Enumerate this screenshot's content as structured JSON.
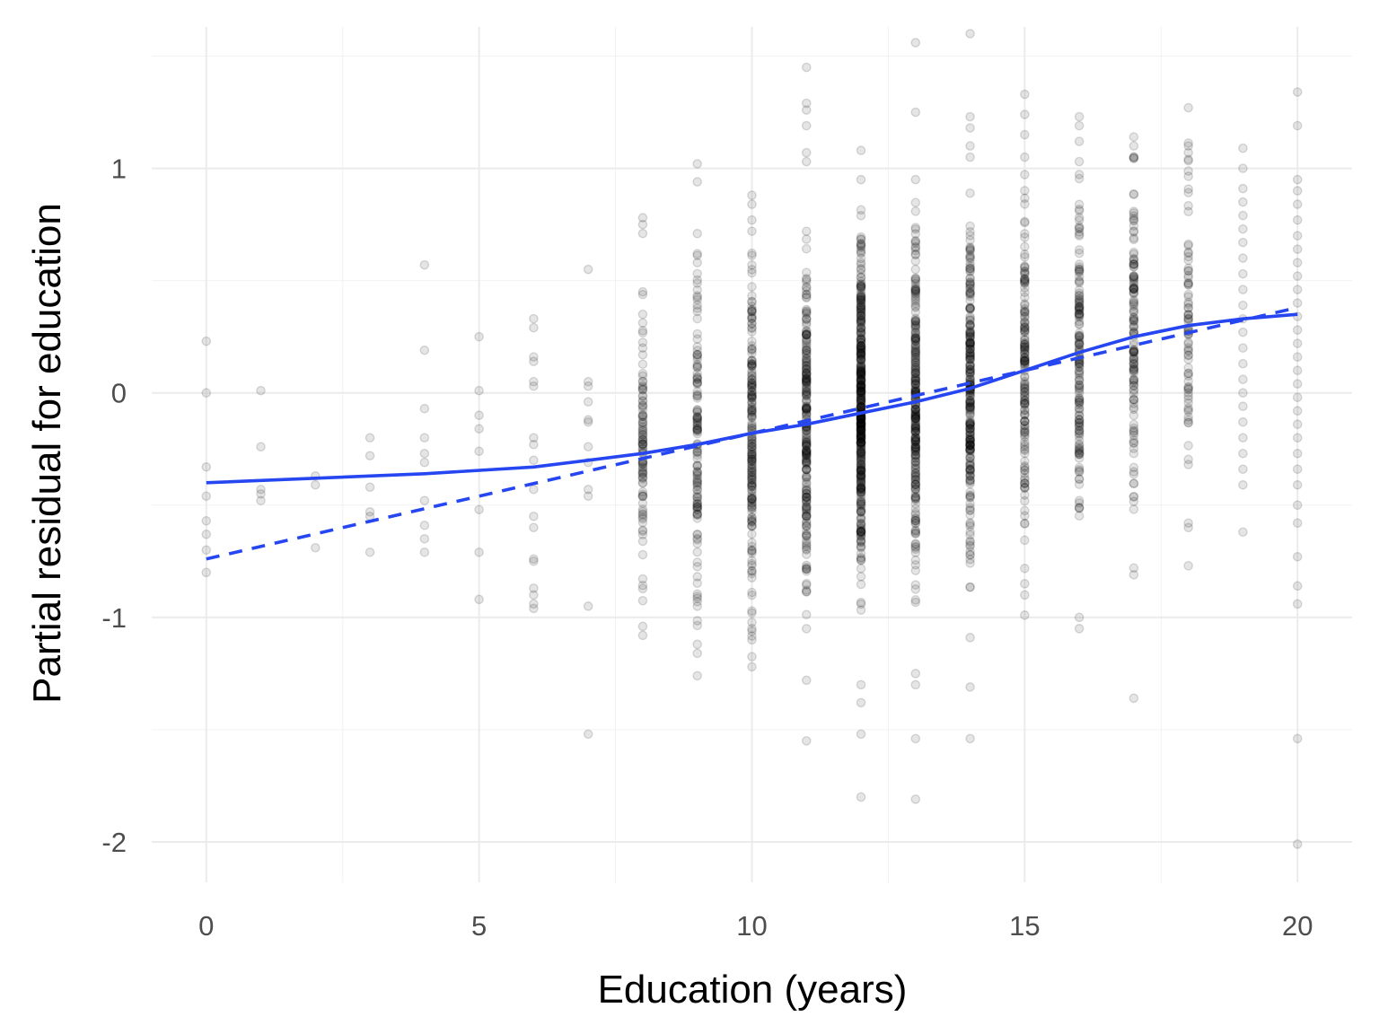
{
  "chart_data": {
    "type": "scatter",
    "title": "",
    "xlabel": "Education (years)",
    "ylabel": "Partial residual for education",
    "xlim": [
      -1,
      21
    ],
    "ylim": [
      -2.18,
      1.63
    ],
    "x_ticks": [
      0,
      5,
      10,
      15,
      20
    ],
    "x_tick_labels": [
      "0",
      "5",
      "10",
      "15",
      "20"
    ],
    "y_ticks": [
      -2,
      -1,
      0,
      1
    ],
    "y_tick_labels": [
      "-2",
      "-1",
      "0",
      "1"
    ],
    "grid": true,
    "legend": "none",
    "point_color": "#000000",
    "point_opacity": 0.12,
    "line_color": "#2546f0",
    "points": {
      "0": [
        0.23,
        0.0,
        -0.33,
        -0.46,
        -0.57,
        -0.63,
        -0.7,
        -0.8
      ],
      "1": [
        0.01,
        -0.24,
        -0.43,
        -0.45,
        -0.48
      ],
      "2": [
        -0.37,
        -0.41,
        -0.69
      ],
      "3": [
        -0.2,
        -0.28,
        -0.42,
        -0.53,
        -0.55,
        -0.71
      ],
      "4": [
        0.57,
        0.19,
        -0.07,
        -0.2,
        -0.27,
        -0.31,
        -0.48,
        -0.59,
        -0.65,
        -0.71
      ],
      "5": [
        0.25,
        0.01,
        -0.1,
        -0.16,
        -0.26,
        -0.52,
        -0.71,
        -0.92
      ],
      "6": [
        0.33,
        0.29,
        0.16,
        0.14,
        0.05,
        0.03,
        -0.2,
        -0.23,
        -0.3,
        -0.43,
        -0.55,
        -0.6,
        -0.74,
        -0.75,
        -0.87,
        -0.9,
        -0.94,
        -0.96
      ],
      "7": [
        0.55,
        0.05,
        0.03,
        -0.04,
        -0.12,
        -0.13,
        -0.24,
        -0.31,
        -0.43,
        -0.46,
        -0.95,
        -1.52
      ],
      "19": [
        1.09,
        1.0,
        0.91,
        0.85,
        0.79,
        0.73,
        0.67,
        0.6,
        0.53,
        0.46,
        0.39,
        0.33,
        0.27,
        0.2,
        0.13,
        0.06,
        0.0,
        -0.06,
        -0.13,
        -0.2,
        -0.27,
        -0.34,
        -0.41,
        -0.62
      ],
      "20": [
        1.34,
        1.19,
        0.95,
        0.9,
        0.84,
        0.77,
        0.7,
        0.64,
        0.58,
        0.52,
        0.46,
        0.4,
        0.34,
        0.28,
        0.22,
        0.16,
        0.1,
        0.04,
        -0.02,
        -0.08,
        -0.14,
        -0.2,
        -0.27,
        -0.34,
        -0.41,
        -0.5,
        -0.58,
        -0.73,
        -0.86,
        -0.94,
        -1.54,
        -2.01
      ]
    },
    "dense_columns": [
      {
        "x": 8,
        "n": 95,
        "min": -1.08,
        "max": 0.78,
        "extremes": [
          0.78,
          0.75,
          0.71,
          0.45,
          0.35,
          -1.04,
          -1.08
        ]
      },
      {
        "x": 9,
        "n": 125,
        "min": -1.26,
        "max": 1.02,
        "extremes": [
          1.02,
          0.94,
          0.62,
          0.58,
          -1.12,
          -1.16,
          -1.26
        ]
      },
      {
        "x": 10,
        "n": 190,
        "min": -1.22,
        "max": 0.88,
        "extremes": [
          0.88,
          0.84,
          0.77,
          0.72,
          -1.05,
          -1.1,
          -1.22
        ]
      },
      {
        "x": 11,
        "n": 230,
        "min": -1.55,
        "max": 1.45,
        "extremes": [
          1.45,
          1.29,
          1.26,
          1.19,
          1.07,
          1.03,
          -1.28,
          -1.55
        ]
      },
      {
        "x": 12,
        "n": 420,
        "min": -1.8,
        "max": 1.08,
        "extremes": [
          1.08,
          0.95,
          -1.3,
          -1.38,
          -1.52,
          -1.8
        ]
      },
      {
        "x": 13,
        "n": 260,
        "min": -1.81,
        "max": 1.56,
        "extremes": [
          1.56,
          1.25,
          0.95,
          -1.25,
          -1.3,
          -1.54,
          -1.81
        ]
      },
      {
        "x": 14,
        "n": 250,
        "min": -1.54,
        "max": 1.6,
        "extremes": [
          1.6,
          1.23,
          1.18,
          1.1,
          1.05,
          -1.09,
          -1.31,
          -1.54
        ]
      },
      {
        "x": 15,
        "n": 150,
        "min": -0.99,
        "max": 1.33,
        "extremes": [
          1.33,
          1.24,
          1.15,
          1.05,
          -0.85,
          -0.9,
          -0.99
        ]
      },
      {
        "x": 16,
        "n": 150,
        "min": -1.05,
        "max": 1.23,
        "extremes": [
          1.23,
          1.19,
          1.12,
          1.03,
          -1.0,
          -1.05
        ]
      },
      {
        "x": 17,
        "n": 130,
        "min": -1.36,
        "max": 1.14,
        "extremes": [
          1.14,
          1.1,
          1.05,
          -0.78,
          -0.81,
          -1.36
        ]
      },
      {
        "x": 18,
        "n": 75,
        "min": -0.77,
        "max": 1.27,
        "extremes": [
          1.27,
          1.1,
          1.04,
          -0.58,
          -0.6,
          -0.77
        ]
      }
    ],
    "series": [
      {
        "style": "solid",
        "x": [
          0,
          2,
          4,
          6,
          7,
          8,
          9,
          10,
          11,
          12,
          13,
          14,
          15,
          16,
          17,
          18,
          19,
          20
        ],
        "y": [
          -0.4,
          -0.38,
          -0.36,
          -0.33,
          -0.3,
          -0.27,
          -0.23,
          -0.18,
          -0.14,
          -0.09,
          -0.04,
          0.02,
          0.1,
          0.18,
          0.25,
          0.3,
          0.33,
          0.35
        ]
      },
      {
        "style": "dashed",
        "x": [
          0,
          20
        ],
        "y": [
          -0.74,
          0.38
        ]
      }
    ]
  }
}
